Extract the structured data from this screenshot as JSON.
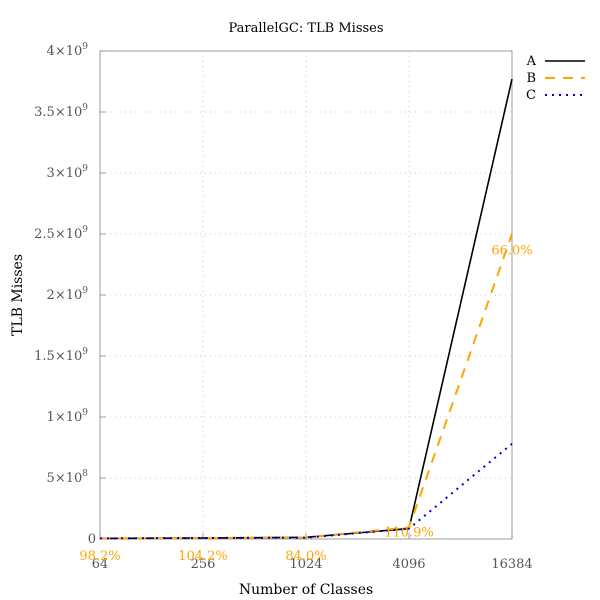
{
  "chart_data": {
    "type": "line",
    "title": "ParallelGC: TLB Misses",
    "xlabel": "Number of Classes",
    "ylabel": "TLB Misses",
    "x": [
      64,
      256,
      1024,
      4096,
      16384
    ],
    "x_scale": "log2",
    "x_tick_labels": [
      "64",
      "256",
      "1024",
      "4096",
      "16384"
    ],
    "ylim": [
      0,
      4000000000
    ],
    "y_ticks": [
      {
        "value": 0,
        "mantissa": "0",
        "exp": ""
      },
      {
        "value": 500000000,
        "mantissa": "5×10",
        "exp": "8"
      },
      {
        "value": 1000000000,
        "mantissa": "1×10",
        "exp": "9"
      },
      {
        "value": 1500000000,
        "mantissa": "1.5×10",
        "exp": "9"
      },
      {
        "value": 2000000000,
        "mantissa": "2×10",
        "exp": "9"
      },
      {
        "value": 2500000000,
        "mantissa": "2.5×10",
        "exp": "9"
      },
      {
        "value": 3000000000,
        "mantissa": "3×10",
        "exp": "9"
      },
      {
        "value": 3500000000,
        "mantissa": "3.5×10",
        "exp": "9"
      },
      {
        "value": 4000000000,
        "mantissa": "4×10",
        "exp": "9"
      }
    ],
    "grid": true,
    "legend_position": "top-right",
    "series": [
      {
        "name": "A",
        "values": [
          5000000,
          8000000,
          14000000,
          85000000,
          3770000000
        ],
        "color": "#000000",
        "dash": "solid"
      },
      {
        "name": "B",
        "values": [
          5000000,
          8000000,
          12000000,
          95000000,
          2500000000
        ],
        "color": "#FFA500",
        "dash": "dashed"
      },
      {
        "name": "C",
        "values": [
          5000000,
          8000000,
          11000000,
          85000000,
          780000000
        ],
        "color": "#0000CC",
        "dash": "dotted"
      }
    ],
    "annotations": [
      {
        "text": "98.2%",
        "x": 64,
        "y": -100000000,
        "color": "#FFA500"
      },
      {
        "text": "104.2%",
        "x": 256,
        "y": -100000000,
        "color": "#FFA500"
      },
      {
        "text": "84.0%",
        "x": 1024,
        "y": -100000000,
        "color": "#FFA500"
      },
      {
        "text": "110.9%",
        "x": 4096,
        "y": 20000000,
        "color": "#FFA500"
      },
      {
        "text": "66.0%",
        "x": 16384,
        "y": 2330000000,
        "color": "#FFA500"
      }
    ]
  }
}
